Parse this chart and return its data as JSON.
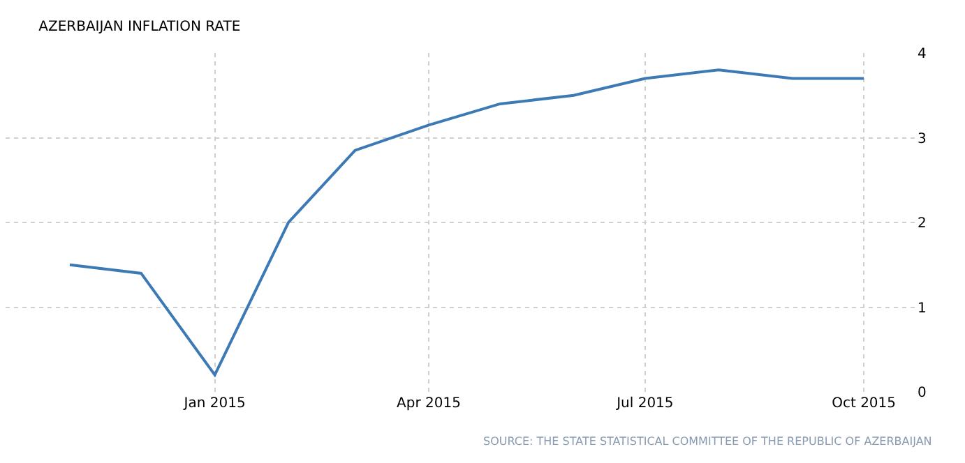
{
  "chart_data": {
    "type": "line",
    "title": "AZERBAIJAN INFLATION RATE",
    "x": [
      "2014-11",
      "2014-12",
      "2015-01",
      "2015-02",
      "2015-03",
      "2015-04",
      "2015-05",
      "2015-06",
      "2015-07",
      "2015-08",
      "2015-09",
      "2015-10"
    ],
    "series": [
      {
        "color": "#3d7ab5",
        "values": [
          1.5,
          1.4,
          0.2,
          2.0,
          2.85,
          3.15,
          3.4,
          3.5,
          3.7,
          3.8,
          3.7,
          3.7
        ]
      }
    ],
    "xlim": [
      "2014-10-05",
      "2015-10-23"
    ],
    "xticks": [
      {
        "value": "2015-01",
        "label": "Jan 2015"
      },
      {
        "value": "2015-04",
        "label": "Apr 2015"
      },
      {
        "value": "2015-07",
        "label": "Jul 2015"
      },
      {
        "value": "2015-10",
        "label": "Oct 2015"
      }
    ],
    "ylim": [
      0,
      4
    ],
    "yticks": [
      0,
      1,
      2,
      3,
      4
    ],
    "grid": true,
    "marker": "none",
    "line_style": "solid",
    "annotations": [
      "SOURCE: THE STATE STATISTICAL COMMITTEE OF THE REPUBLIC OF AZERBAIJAN"
    ]
  }
}
